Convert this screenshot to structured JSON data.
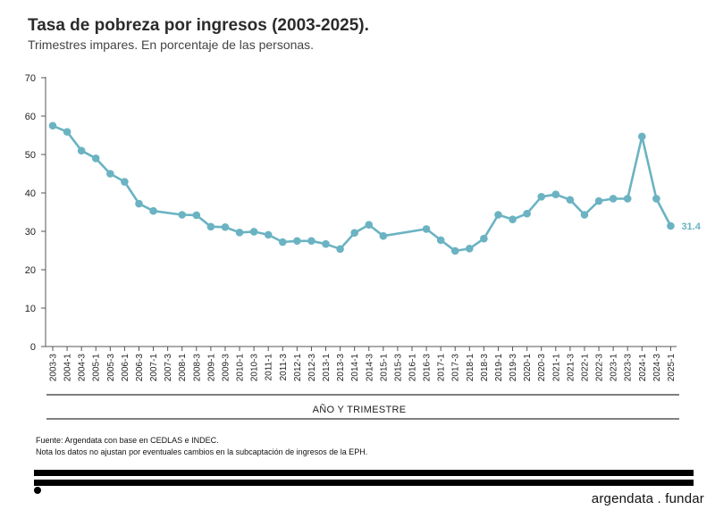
{
  "header": {
    "title": "Tasa de pobreza por ingresos (2003-2025).",
    "subtitle": "Trimestres impares. En porcentaje de las personas."
  },
  "footer": {
    "source": "Fuente: Argendata con base en CEDLAS e INDEC.",
    "note": "Nota los datos no ajustan por eventuales cambios en la subcaptación de ingresos de la EPH.",
    "brand": "argendata . fundar"
  },
  "colors": {
    "line": "#6bb3c2",
    "marker": "#6bb3c2",
    "text": "#222222"
  },
  "chart_data": {
    "type": "line",
    "title": "Tasa de pobreza por ingresos (2003-2025).",
    "subtitle": "Trimestres impares. En porcentaje de las personas.",
    "xlabel": "AÑO Y TRIMESTRE",
    "ylabel": "",
    "ylim": [
      0,
      70
    ],
    "yticks": [
      0,
      10,
      20,
      30,
      40,
      50,
      60,
      70
    ],
    "grid": false,
    "categories": [
      "2003-3",
      "2004-1",
      "2004-3",
      "2005-1",
      "2005-3",
      "2006-1",
      "2006-3",
      "2007-1",
      "2007-3",
      "2008-1",
      "2008-3",
      "2009-1",
      "2009-3",
      "2010-1",
      "2010-3",
      "2011-1",
      "2011-3",
      "2012-1",
      "2012-3",
      "2013-1",
      "2013-3",
      "2014-1",
      "2014-3",
      "2015-1",
      "2015-3",
      "2016-1",
      "2016-3",
      "2017-1",
      "2017-3",
      "2018-1",
      "2018-3",
      "2019-1",
      "2019-3",
      "2020-1",
      "2020-3",
      "2021-1",
      "2021-3",
      "2022-1",
      "2022-3",
      "2023-1",
      "2023-3",
      "2024-1",
      "2024-3",
      "2025-1"
    ],
    "series": [
      {
        "values": [
          57.5,
          55.9,
          51.0,
          49.0,
          45.0,
          42.9,
          37.2,
          35.3,
          null,
          34.3,
          34.2,
          31.2,
          31.1,
          29.7,
          29.9,
          29.1,
          27.2,
          27.5,
          27.5,
          26.7,
          25.4,
          29.6,
          31.7,
          28.8,
          null,
          null,
          30.6,
          27.7,
          24.9,
          25.5,
          28.1,
          34.3,
          33.1,
          34.6,
          39.0,
          39.6,
          38.2,
          34.3,
          37.9,
          38.5,
          38.5,
          54.7,
          38.5,
          31.4
        ]
      }
    ],
    "data_labels": [
      {
        "category": "2025-1",
        "text": "31.4"
      }
    ]
  }
}
